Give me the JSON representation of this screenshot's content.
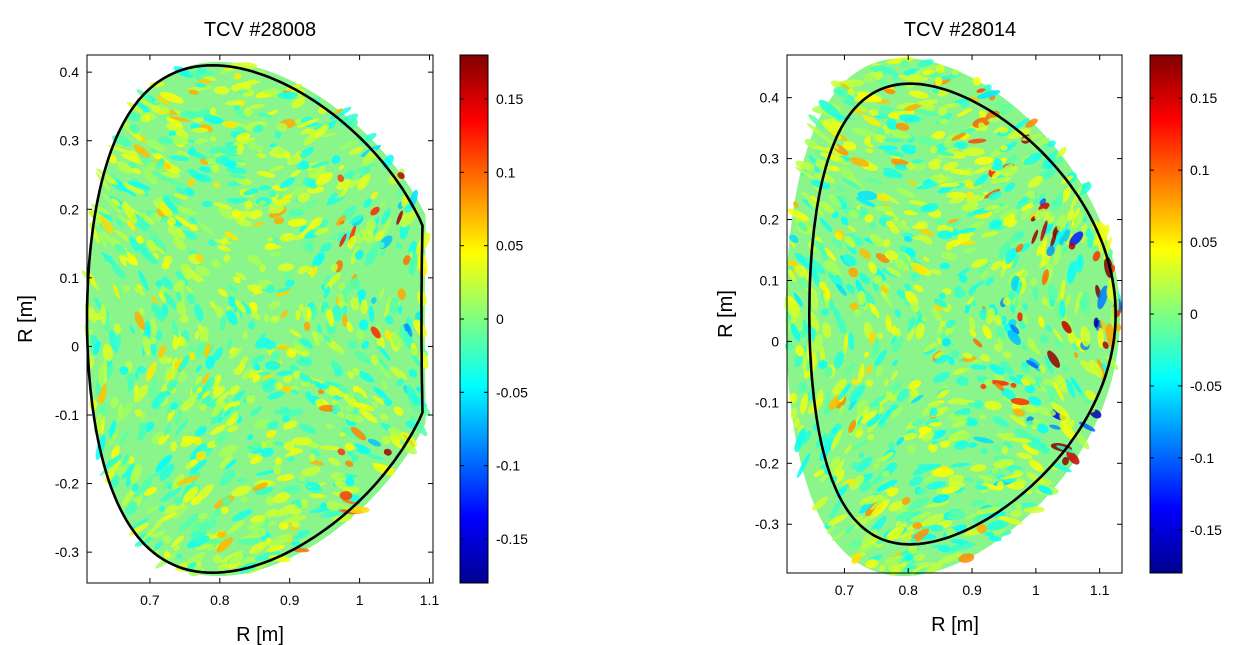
{
  "chart_data": [
    {
      "type": "heatmap",
      "title": "TCV #28008",
      "xlabel": "R [m]",
      "ylabel": "R [m]",
      "xlim": [
        0.61,
        1.105
      ],
      "ylim": [
        -0.345,
        0.425
      ],
      "xticks": [
        "0.7",
        "0.8",
        "0.9",
        "1",
        "1.1"
      ],
      "xtick_values": [
        0.7,
        0.8,
        0.9,
        1.0,
        1.1
      ],
      "yticks": [
        "-0.3",
        "-0.2",
        "-0.1",
        "0",
        "0.1",
        "0.2",
        "0.3",
        "0.4"
      ],
      "ytick_values": [
        -0.3,
        -0.2,
        -0.1,
        0,
        0.1,
        0.2,
        0.3,
        0.4
      ],
      "colorbar": {
        "range": [
          -0.18,
          0.18
        ],
        "ticks": [
          "-0.15",
          "-0.1",
          "-0.05",
          "0",
          "0.05",
          "0.1",
          "0.15"
        ],
        "tick_values": [
          -0.15,
          -0.1,
          -0.05,
          0,
          0.05,
          0.1,
          0.15
        ],
        "colormap": "jet"
      },
      "grid": false
    },
    {
      "type": "heatmap",
      "title": "TCV #28014",
      "xlabel": "R [m]",
      "ylabel": "R [m]",
      "xlim": [
        0.61,
        1.135
      ],
      "ylim": [
        -0.38,
        0.47
      ],
      "xticks": [
        "0.7",
        "0.8",
        "0.9",
        "1",
        "1.1"
      ],
      "xtick_values": [
        0.7,
        0.8,
        0.9,
        1.0,
        1.1
      ],
      "yticks": [
        "-0.3",
        "-0.2",
        "-0.1",
        "0",
        "0.1",
        "0.2",
        "0.3",
        "0.4"
      ],
      "ytick_values": [
        -0.3,
        -0.2,
        -0.1,
        0,
        0.1,
        0.2,
        0.3,
        0.4
      ],
      "colorbar": {
        "range": [
          -0.18,
          0.18
        ],
        "ticks": [
          "-0.15",
          "-0.1",
          "-0.05",
          "0",
          "0.05",
          "0.1",
          "0.15"
        ],
        "tick_values": [
          -0.15,
          -0.1,
          -0.05,
          0,
          0.05,
          0.1,
          0.15
        ],
        "colormap": "jet"
      },
      "grid": false
    }
  ]
}
